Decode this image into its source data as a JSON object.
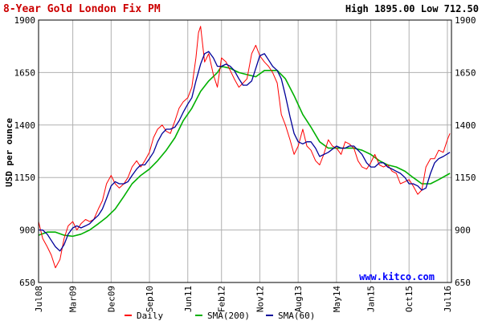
{
  "chart_data": {
    "type": "line",
    "title": "8-Year Gold London Fix PM",
    "high_low_label": "High 1895.00 Low 712.50",
    "ylabel": "USD per ounce",
    "watermark": "www.kitco.com",
    "ylim": [
      650,
      1900
    ],
    "yticks": [
      "650",
      "900",
      "1150",
      "1400",
      "1650",
      "1900"
    ],
    "xlim": [
      2008.5,
      2016.58
    ],
    "xticks": [
      {
        "label": "Jul08",
        "t": 2008.5
      },
      {
        "label": "Mar09",
        "t": 2009.17
      },
      {
        "label": "Dec09",
        "t": 2009.92
      },
      {
        "label": "Sep10",
        "t": 2010.67
      },
      {
        "label": "Jun11",
        "t": 2011.42
      },
      {
        "label": "Feb12",
        "t": 2012.08
      },
      {
        "label": "Nov12",
        "t": 2012.83
      },
      {
        "label": "Aug13",
        "t": 2013.58
      },
      {
        "label": "May14",
        "t": 2014.33
      },
      {
        "label": "Jan15",
        "t": 2015.0
      },
      {
        "label": "Oct15",
        "t": 2015.75
      },
      {
        "label": "Jul16",
        "t": 2016.5
      }
    ],
    "legend": [
      "Daily",
      "SMA(200)",
      "SMA(60)"
    ],
    "colors": {
      "daily": "#ff0000",
      "sma200": "#00b000",
      "sma60": "#000099",
      "title": "#cc0000",
      "grid": "#b0b0b0",
      "watermark": "#0000ff"
    },
    "series": [
      {
        "name": "Daily",
        "x": [
          2008.5,
          2008.58,
          2008.67,
          2008.75,
          2008.83,
          2008.92,
          2009.0,
          2009.08,
          2009.17,
          2009.25,
          2009.33,
          2009.42,
          2009.5,
          2009.58,
          2009.67,
          2009.75,
          2009.83,
          2009.92,
          2010.0,
          2010.08,
          2010.17,
          2010.25,
          2010.33,
          2010.42,
          2010.5,
          2010.58,
          2010.67,
          2010.75,
          2010.83,
          2010.92,
          2011.0,
          2011.08,
          2011.17,
          2011.25,
          2011.33,
          2011.42,
          2011.5,
          2011.58,
          2011.63,
          2011.67,
          2011.75,
          2011.83,
          2011.92,
          2012.0,
          2012.08,
          2012.17,
          2012.25,
          2012.33,
          2012.42,
          2012.5,
          2012.58,
          2012.67,
          2012.75,
          2012.83,
          2012.92,
          2013.0,
          2013.08,
          2013.17,
          2013.25,
          2013.33,
          2013.42,
          2013.5,
          2013.58,
          2013.67,
          2013.75,
          2013.83,
          2013.92,
          2014.0,
          2014.08,
          2014.17,
          2014.25,
          2014.33,
          2014.42,
          2014.5,
          2014.58,
          2014.67,
          2014.75,
          2014.83,
          2014.92,
          2015.0,
          2015.08,
          2015.17,
          2015.25,
          2015.33,
          2015.42,
          2015.5,
          2015.58,
          2015.67,
          2015.75,
          2015.83,
          2015.92,
          2016.0,
          2016.08,
          2016.17,
          2016.25,
          2016.33,
          2016.42,
          2016.5,
          2016.55
        ],
        "values": [
          940,
          860,
          820,
          780,
          720,
          760,
          860,
          920,
          940,
          900,
          930,
          950,
          940,
          950,
          1000,
          1040,
          1120,
          1160,
          1120,
          1100,
          1120,
          1150,
          1200,
          1230,
          1200,
          1230,
          1270,
          1340,
          1380,
          1400,
          1370,
          1360,
          1420,
          1480,
          1510,
          1530,
          1580,
          1720,
          1840,
          1870,
          1700,
          1740,
          1640,
          1580,
          1720,
          1700,
          1660,
          1620,
          1580,
          1600,
          1620,
          1740,
          1780,
          1730,
          1700,
          1680,
          1650,
          1600,
          1450,
          1400,
          1330,
          1260,
          1300,
          1380,
          1300,
          1280,
          1230,
          1210,
          1260,
          1330,
          1300,
          1290,
          1260,
          1320,
          1310,
          1290,
          1230,
          1200,
          1190,
          1220,
          1260,
          1210,
          1200,
          1210,
          1180,
          1170,
          1120,
          1130,
          1140,
          1110,
          1070,
          1090,
          1200,
          1240,
          1240,
          1280,
          1270,
          1330,
          1360
        ]
      },
      {
        "name": "SMA(200)",
        "x": [
          2008.5,
          2008.67,
          2008.83,
          2009.0,
          2009.17,
          2009.33,
          2009.5,
          2009.67,
          2009.83,
          2010.0,
          2010.17,
          2010.33,
          2010.5,
          2010.67,
          2010.83,
          2011.0,
          2011.17,
          2011.33,
          2011.5,
          2011.67,
          2011.83,
          2012.0,
          2012.08,
          2012.25,
          2012.42,
          2012.58,
          2012.75,
          2012.92,
          2013.0,
          2013.17,
          2013.33,
          2013.5,
          2013.67,
          2013.83,
          2014.0,
          2014.17,
          2014.33,
          2014.5,
          2014.67,
          2014.83,
          2015.0,
          2015.17,
          2015.33,
          2015.5,
          2015.67,
          2015.83,
          2016.0,
          2016.17,
          2016.33,
          2016.55
        ],
        "values": [
          875,
          890,
          890,
          875,
          870,
          880,
          900,
          930,
          960,
          1000,
          1060,
          1120,
          1160,
          1190,
          1230,
          1280,
          1340,
          1420,
          1480,
          1560,
          1610,
          1650,
          1680,
          1670,
          1650,
          1640,
          1630,
          1660,
          1660,
          1660,
          1620,
          1540,
          1450,
          1390,
          1320,
          1290,
          1290,
          1290,
          1290,
          1280,
          1260,
          1230,
          1210,
          1200,
          1180,
          1150,
          1120,
          1120,
          1140,
          1170
        ]
      },
      {
        "name": "SMA(60)",
        "x": [
          2008.5,
          2008.58,
          2008.67,
          2008.75,
          2008.83,
          2008.92,
          2009.0,
          2009.08,
          2009.17,
          2009.25,
          2009.33,
          2009.42,
          2009.5,
          2009.58,
          2009.67,
          2009.75,
          2009.83,
          2009.92,
          2010.0,
          2010.08,
          2010.17,
          2010.25,
          2010.33,
          2010.42,
          2010.5,
          2010.58,
          2010.67,
          2010.75,
          2010.83,
          2010.92,
          2011.0,
          2011.08,
          2011.17,
          2011.25,
          2011.33,
          2011.42,
          2011.5,
          2011.58,
          2011.67,
          2011.75,
          2011.83,
          2011.92,
          2012.0,
          2012.08,
          2012.17,
          2012.25,
          2012.33,
          2012.42,
          2012.5,
          2012.58,
          2012.67,
          2012.75,
          2012.83,
          2012.92,
          2013.0,
          2013.08,
          2013.17,
          2013.25,
          2013.33,
          2013.42,
          2013.5,
          2013.58,
          2013.67,
          2013.75,
          2013.83,
          2013.92,
          2014.0,
          2014.17,
          2014.33,
          2014.42,
          2014.5,
          2014.58,
          2014.67,
          2014.75,
          2014.83,
          2014.92,
          2015.0,
          2015.08,
          2015.17,
          2015.25,
          2015.33,
          2015.42,
          2015.5,
          2015.58,
          2015.67,
          2015.75,
          2015.83,
          2015.92,
          2016.0,
          2016.08,
          2016.17,
          2016.25,
          2016.33,
          2016.42,
          2016.55
        ],
        "values": [
          900,
          900,
          880,
          850,
          820,
          800,
          830,
          880,
          910,
          920,
          910,
          920,
          930,
          950,
          970,
          1000,
          1050,
          1110,
          1130,
          1120,
          1120,
          1130,
          1160,
          1190,
          1210,
          1210,
          1240,
          1270,
          1320,
          1360,
          1380,
          1380,
          1390,
          1420,
          1460,
          1500,
          1530,
          1610,
          1690,
          1740,
          1750,
          1720,
          1680,
          1680,
          1690,
          1680,
          1660,
          1620,
          1590,
          1590,
          1610,
          1670,
          1730,
          1740,
          1710,
          1680,
          1660,
          1620,
          1540,
          1440,
          1360,
          1320,
          1310,
          1320,
          1320,
          1290,
          1250,
          1270,
          1300,
          1290,
          1290,
          1300,
          1300,
          1280,
          1260,
          1220,
          1200,
          1200,
          1220,
          1220,
          1200,
          1190,
          1180,
          1170,
          1150,
          1120,
          1120,
          1110,
          1090,
          1100,
          1170,
          1220,
          1240,
          1250,
          1270
        ]
      }
    ]
  }
}
